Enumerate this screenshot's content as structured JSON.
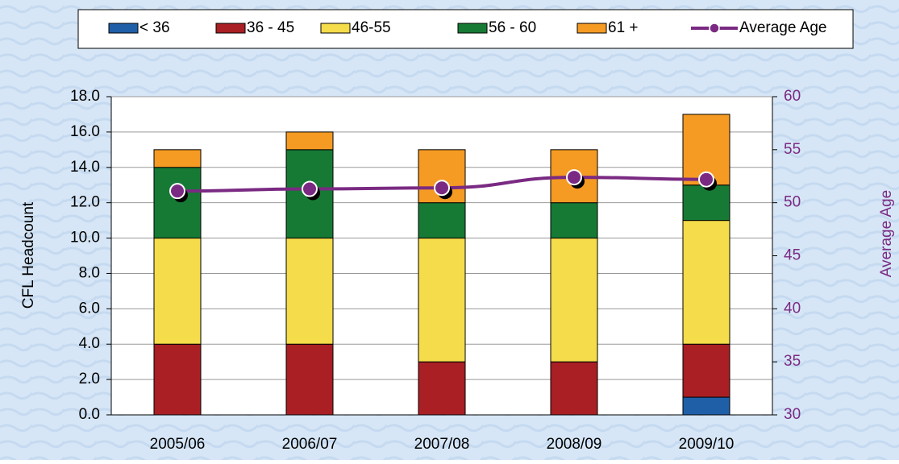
{
  "chart_data": {
    "type": "stacked-bar-line",
    "categories": [
      "2005/06",
      "2006/07",
      "2007/08",
      "2008/09",
      "2009/10"
    ],
    "series": [
      {
        "name": "< 36",
        "color": "#1f5fa8",
        "values": [
          0,
          0,
          0,
          0,
          1
        ]
      },
      {
        "name": "36 - 45",
        "color": "#a91f24",
        "values": [
          4,
          4,
          3,
          3,
          3
        ]
      },
      {
        "name": "46-55",
        "color": "#f4dc4a",
        "values": [
          6,
          6,
          7,
          7,
          7
        ]
      },
      {
        "name": "56 - 60",
        "color": "#167a35",
        "values": [
          4,
          5,
          2,
          2,
          2
        ]
      },
      {
        "name": "61 +",
        "color": "#f59a23",
        "values": [
          1,
          1,
          3,
          3,
          4
        ]
      },
      {
        "name": "Average Age",
        "color": "#7a2a82",
        "axis": "y2",
        "values": [
          51.1,
          51.3,
          51.4,
          52.4,
          52.2
        ]
      }
    ],
    "ylabel": "CFL Headcount",
    "y2label": "Average Age",
    "ylim": [
      0,
      18
    ],
    "yticks": [
      {
        "value": 0,
        "label": "0.0"
      },
      {
        "value": 2,
        "label": "2.0"
      },
      {
        "value": 4,
        "label": "4.0"
      },
      {
        "value": 6,
        "label": "6.0"
      },
      {
        "value": 8,
        "label": "8.0"
      },
      {
        "value": 10,
        "label": "10.0"
      },
      {
        "value": 12,
        "label": "12.0"
      },
      {
        "value": 14,
        "label": "14.0"
      },
      {
        "value": 16,
        "label": "16.0"
      },
      {
        "value": 18,
        "label": "18.0"
      }
    ],
    "y2lim": [
      30,
      60
    ],
    "y2ticks": [
      30,
      35,
      40,
      45,
      50,
      55,
      60
    ],
    "grid": true,
    "legend": "top"
  }
}
